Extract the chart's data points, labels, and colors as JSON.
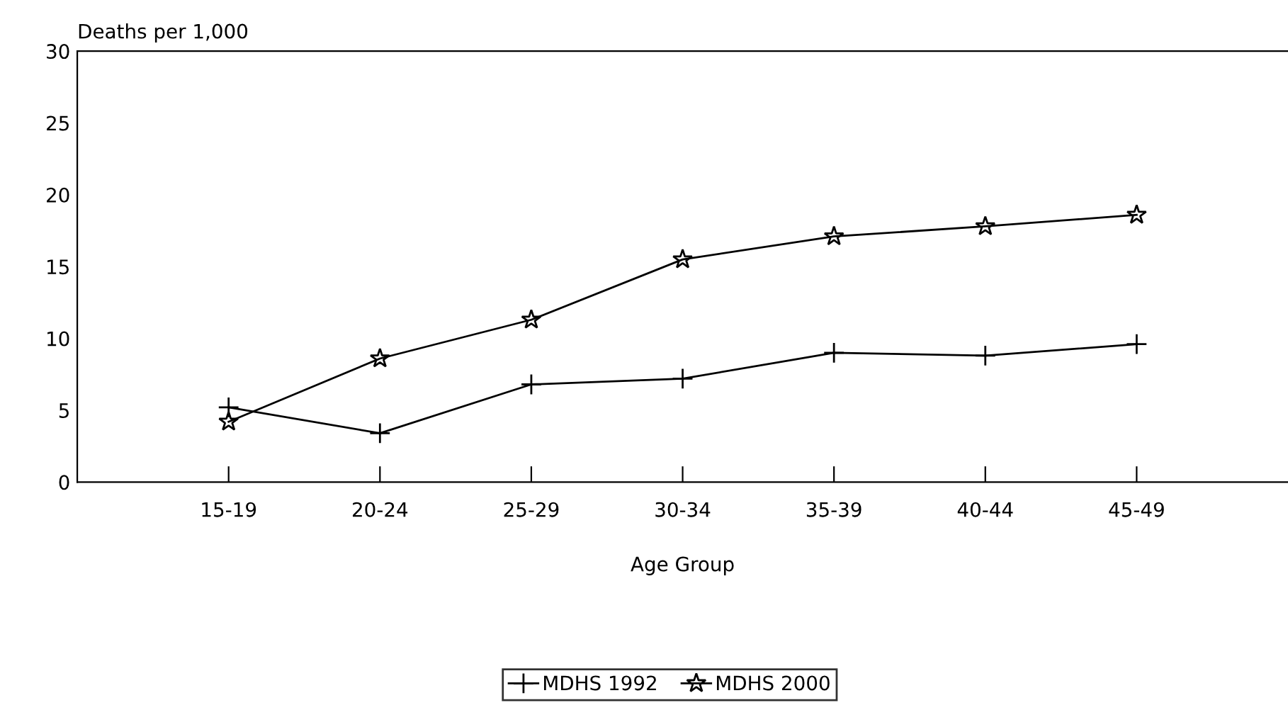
{
  "chart_data": {
    "type": "line",
    "ylabel": "Deaths per 1,000",
    "xlabel": "Age Group",
    "categories": [
      "15-19",
      "20-24",
      "25-29",
      "30-34",
      "35-39",
      "40-44",
      "45-49"
    ],
    "series": [
      {
        "name": "MDHS 1992",
        "color": "#000000",
        "marker": "cross",
        "values": [
          5.2,
          3.4,
          6.8,
          7.2,
          9.0,
          8.8,
          9.6
        ]
      },
      {
        "name": "MDHS 2000",
        "color": "#000000",
        "marker": "star",
        "values": [
          4.2,
          8.6,
          11.3,
          15.5,
          17.1,
          17.8,
          18.6
        ]
      }
    ],
    "ylim": [
      0,
      30
    ],
    "yticks": [
      0,
      5,
      10,
      15,
      20,
      25,
      30
    ],
    "grid": false,
    "legend": "bottom",
    "line_style": "solid"
  }
}
